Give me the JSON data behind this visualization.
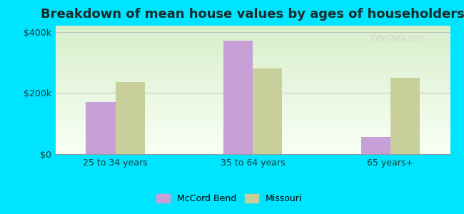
{
  "title": "Breakdown of mean house values by ages of householders",
  "categories": [
    "25 to 34 years",
    "35 to 64 years",
    "65 years+"
  ],
  "mccord_bend": [
    170000,
    370000,
    55000
  ],
  "missouri": [
    235000,
    280000,
    250000
  ],
  "mccord_color": "#c8a0d8",
  "missouri_color": "#c8cf9a",
  "background_outer": "#00e5ff",
  "grad_top": "#d8eecb",
  "grad_bottom": "#f8fff4",
  "ylim": [
    0,
    420000
  ],
  "ytick_vals": [
    0,
    200000,
    400000
  ],
  "ytick_labels": [
    "$0",
    "$200k",
    "$400k"
  ],
  "legend_labels": [
    "McCord Bend",
    "Missouri"
  ],
  "bar_width": 0.32,
  "title_fontsize": 13,
  "tick_fontsize": 9,
  "legend_fontsize": 9
}
